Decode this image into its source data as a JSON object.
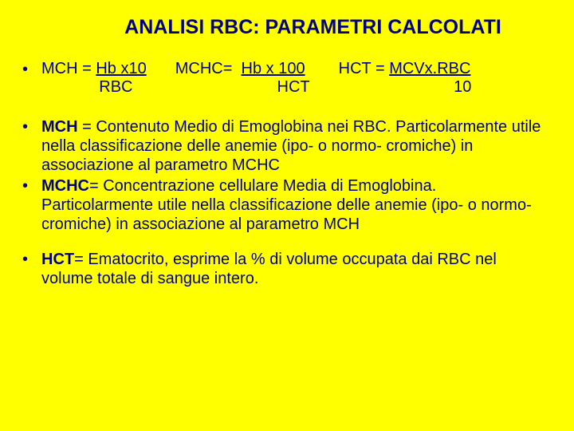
{
  "colors": {
    "background": "#ffff00",
    "text": "#000080"
  },
  "title": "ANALISI RBC: PARAMETRI CALCOLATI",
  "formulas": {
    "mch": {
      "label": "MCH = ",
      "numerator": "Hb x10",
      "denominator": "RBC"
    },
    "mchc": {
      "label": "MCHC=  ",
      "numerator": "Hb x 100",
      "denominator": "HCT"
    },
    "hct": {
      "label": "HCT = ",
      "numerator": "MCVx.RBC",
      "denominator": "10"
    }
  },
  "bullets": {
    "b1_bold": "MCH",
    "b1_text": " = Contenuto Medio di Emoglobina nei RBC. Particolarmente utile nella classificazione delle anemie (ipo- o normo- cromiche) in associazione al parametro MCHC",
    "b2_bold": "MCHC",
    "b2_text": "= Concentrazione cellulare Media di Emoglobina. Particolarmente utile nella classificazione delle anemie (ipo- o normo- cromiche) in associazione al parametro MCH",
    "b3_bold": "HCT",
    "b3_text": "= Ematocrito, esprime la % di volume occupata dai RBC nel volume totale di sangue intero."
  },
  "typography": {
    "title_fontsize": 25,
    "body_fontsize": 20,
    "font_family": "Arial"
  }
}
